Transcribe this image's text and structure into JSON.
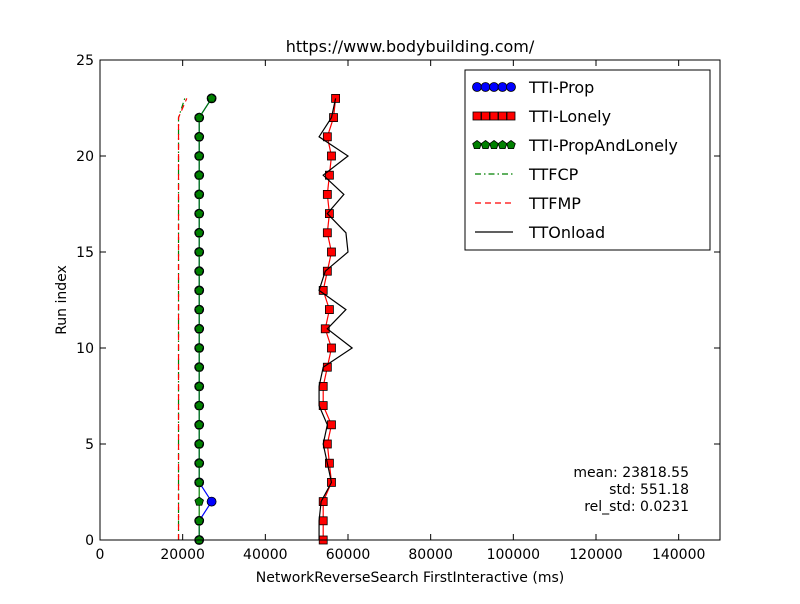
{
  "chart_data": {
    "type": "line",
    "title": "https://www.bodybuilding.com/",
    "xlabel": "NetworkReverseSearch FirstInteractive (ms)",
    "ylabel": "Run index",
    "xlim": [
      0,
      150000
    ],
    "ylim": [
      0,
      25
    ],
    "xticks": [
      0,
      20000,
      40000,
      60000,
      80000,
      100000,
      120000,
      140000
    ],
    "xtick_labels": [
      "0",
      "20000",
      "40000",
      "60000",
      "80000",
      "100000",
      "120000",
      "140000"
    ],
    "yticks": [
      0,
      5,
      10,
      15,
      20,
      25
    ],
    "ytick_labels": [
      "0",
      "5",
      "10",
      "15",
      "20",
      "25"
    ],
    "grid": false,
    "legend_position": "top-right",
    "y": [
      0,
      1,
      2,
      3,
      4,
      5,
      6,
      7,
      8,
      9,
      10,
      11,
      12,
      13,
      14,
      15,
      16,
      17,
      18,
      19,
      20,
      21,
      22,
      23
    ],
    "series": [
      {
        "name": "TTI-Prop",
        "color": "#0000ff",
        "style": "solid",
        "marker": "circle",
        "x": [
          24000,
          24000,
          27000,
          24000,
          24000,
          24000,
          24000,
          24000,
          24000,
          24000,
          24000,
          24000,
          24000,
          24000,
          24000,
          24000,
          24000,
          24000,
          24000,
          24000,
          24000,
          24000,
          24000,
          27000
        ]
      },
      {
        "name": "TTI-Lonely",
        "color": "#ff0000",
        "style": "solid",
        "marker": "square",
        "x": [
          54000,
          54000,
          54000,
          56000,
          55500,
          55000,
          56000,
          54000,
          54000,
          55000,
          56000,
          54500,
          55500,
          54000,
          55000,
          56000,
          55000,
          55500,
          55000,
          55500,
          56000,
          55000,
          56500,
          57000
        ]
      },
      {
        "name": "TTI-PropAndLonely",
        "color": "#008000",
        "style": "solid",
        "marker": "pentagon",
        "x": [
          24000,
          24000,
          24000,
          24000,
          24000,
          24000,
          24000,
          24000,
          24000,
          24000,
          24000,
          24000,
          24000,
          24000,
          24000,
          24000,
          24000,
          24000,
          24000,
          24000,
          24000,
          24000,
          24000,
          27000
        ]
      },
      {
        "name": "TTFCP",
        "color": "#008000",
        "style": "dashdot",
        "marker": "none",
        "x": [
          19000,
          19000,
          19000,
          19000,
          19000,
          19000,
          19000,
          19000,
          19000,
          19000,
          19000,
          19000,
          19000,
          19000,
          19000,
          19000,
          19000,
          19000,
          19000,
          19000,
          19000,
          19000,
          19000,
          20500
        ]
      },
      {
        "name": "TTFMP",
        "color": "#ff0000",
        "style": "dashed",
        "marker": "none",
        "x": [
          19000,
          19000,
          19000,
          19000,
          19000,
          19000,
          19000,
          19000,
          19000,
          19000,
          19000,
          19000,
          19000,
          19000,
          19000,
          19000,
          19000,
          19000,
          19000,
          19000,
          19000,
          19000,
          19000,
          21000
        ]
      },
      {
        "name": "TTOnload",
        "color": "#000000",
        "style": "solid",
        "marker": "none",
        "x": [
          53000,
          53000,
          53500,
          56000,
          55000,
          54000,
          55000,
          53000,
          53000,
          54000,
          61000,
          55000,
          59500,
          53000,
          54500,
          60000,
          59500,
          55000,
          59000,
          54000,
          60000,
          53000,
          56000,
          57000
        ]
      }
    ],
    "annotations": [
      "mean: 23818.55",
      "std: 551.18",
      "rel_std: 0.0231"
    ]
  }
}
